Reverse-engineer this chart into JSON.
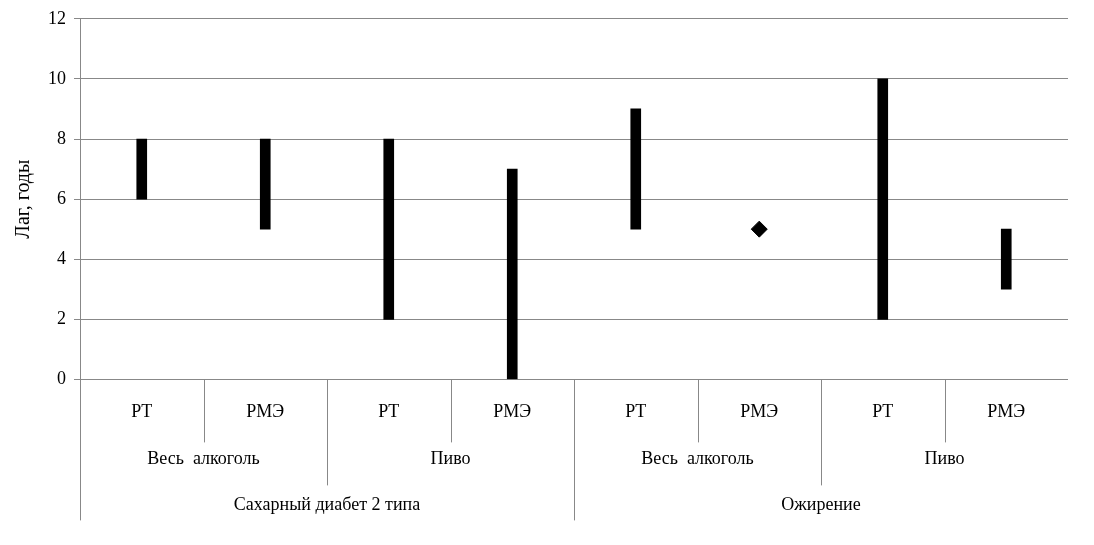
{
  "chart_data": {
    "type": "bar",
    "ylabel": "Лаг, годы",
    "categories": [
      "РТ",
      "РМЭ",
      "РТ",
      "РМЭ",
      "РТ",
      "РМЭ",
      "РТ",
      "РМЭ"
    ],
    "series": [
      {
        "color": "#000000",
        "base": [
          6,
          5,
          2,
          0,
          5,
          null,
          2,
          3
        ],
        "values": [
          2,
          3,
          6,
          7,
          4,
          null,
          8,
          2
        ]
      },
      {
        "type": "scatter",
        "color": "#000000",
        "marker": "diamond",
        "values": [
          null,
          null,
          null,
          null,
          null,
          5,
          null,
          null
        ]
      }
    ],
    "ylim": [
      0,
      12
    ],
    "yticks": [
      0,
      2,
      4,
      6,
      8,
      10,
      12
    ],
    "grid": "y",
    "annotations": [
      "Весь  алкоголь",
      "Пиво",
      "Весь  алкоголь",
      "Пиво",
      "Сахарный диабет 2 типа",
      "Ожирение"
    ]
  }
}
